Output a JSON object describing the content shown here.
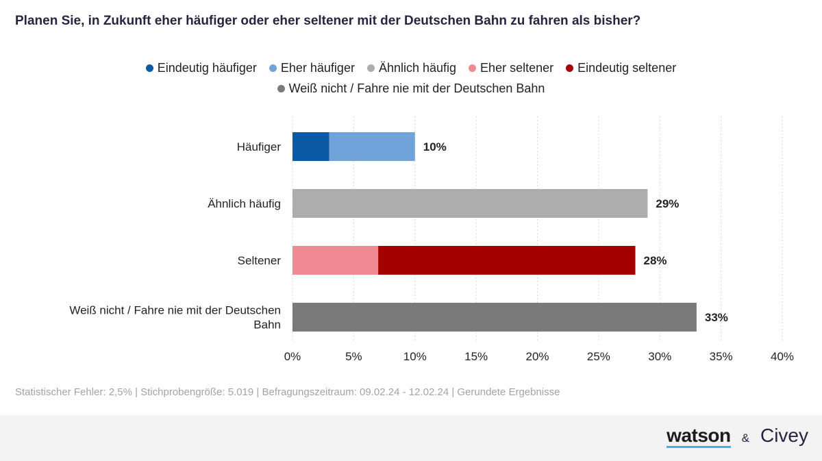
{
  "title": "Planen Sie, in Zukunft eher häufiger oder eher seltener mit der Deutschen Bahn zu fahren als bisher?",
  "legend": [
    {
      "label": "Eindeutig häufiger",
      "color": "#0b5aa6"
    },
    {
      "label": "Eher häufiger",
      "color": "#6fa3d9"
    },
    {
      "label": "Ähnlich häufig",
      "color": "#adadad"
    },
    {
      "label": "Eher seltener",
      "color": "#f08a92"
    },
    {
      "label": "Eindeutig seltener",
      "color": "#a50000"
    },
    {
      "label": "Weiß nicht / Fahre nie mit der Deutschen Bahn",
      "color": "#7a7a7a"
    }
  ],
  "chart_data": {
    "type": "bar",
    "orientation": "horizontal",
    "stacked": true,
    "categories": [
      "Häufiger",
      "Ähnlich häufig",
      "Seltener",
      "Weiß nicht / Fahre nie mit der Deutschen Bahn"
    ],
    "category_lines": [
      [
        "Häufiger"
      ],
      [
        "Ähnlich häufig"
      ],
      [
        "Seltener"
      ],
      [
        "Weiß nicht / Fahre nie mit der Deutschen",
        "Bahn"
      ]
    ],
    "series": [
      {
        "name": "Eindeutig häufiger",
        "color": "#0b5aa6",
        "values": [
          3,
          0,
          0,
          0
        ]
      },
      {
        "name": "Eher häufiger",
        "color": "#6fa3d9",
        "values": [
          7,
          0,
          0,
          0
        ]
      },
      {
        "name": "Ähnlich häufig",
        "color": "#adadad",
        "values": [
          0,
          29,
          0,
          0
        ]
      },
      {
        "name": "Eher seltener",
        "color": "#f08a92",
        "values": [
          0,
          0,
          7,
          0
        ]
      },
      {
        "name": "Eindeutig seltener",
        "color": "#a50000",
        "values": [
          0,
          0,
          21,
          0
        ]
      },
      {
        "name": "Weiß nicht / Fahre nie mit der Deutschen Bahn",
        "color": "#7a7a7a",
        "values": [
          0,
          0,
          0,
          33
        ]
      }
    ],
    "totals": [
      "10%",
      "29%",
      "28%",
      "33%"
    ],
    "xlim": [
      0,
      40
    ],
    "xticks": [
      "0%",
      "5%",
      "10%",
      "15%",
      "20%",
      "25%",
      "30%",
      "35%",
      "40%"
    ],
    "grid": true
  },
  "footer": {
    "note": "Statistischer Fehler: 2,5% | Stichprobengröße: 5.019 | Befragungszeitraum: 09.02.24 - 12.02.24 | Gerundete Ergebnisse",
    "brand_watson": "watson",
    "brand_amp": "&",
    "brand_civey": "Civey"
  }
}
